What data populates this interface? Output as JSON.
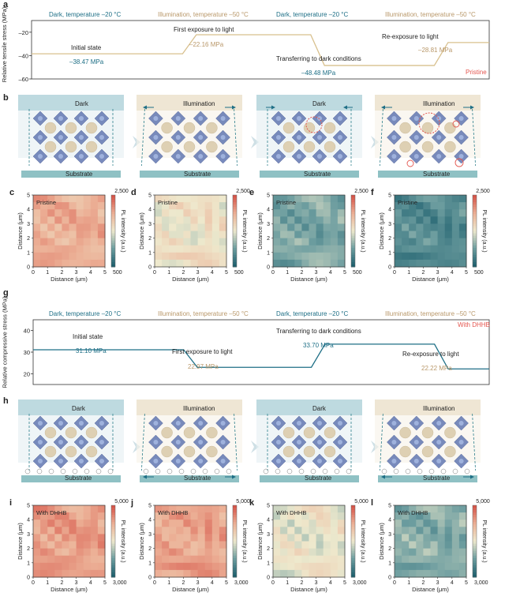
{
  "panels": {
    "a": "a",
    "b": "b",
    "c": "c",
    "d": "d",
    "e": "e",
    "f": "f",
    "g": "g",
    "h": "h",
    "i": "i",
    "j": "j",
    "k": "k",
    "l": "l"
  },
  "chart_data": [
    {
      "type": "line",
      "panel": "a",
      "ylabel": "Relative tensile stress (MPa)",
      "ylim": [
        -60,
        -10
      ],
      "yticks": [
        -20,
        -40,
        -60
      ],
      "x_stages": [
        0,
        1,
        2,
        3
      ],
      "values": [
        -38.47,
        -22.16,
        -48.48,
        -28.81
      ],
      "stage_headers": [
        "Dark, temperature –20 °C",
        "Illumination, temperature –50 °C",
        "Dark, temperature –20 °C",
        "Illumination, temperature –50 °C"
      ],
      "stage_labels": [
        "Initial state",
        "First exposure to light",
        "Transferring to dark conditions",
        "Re-exposure to light"
      ],
      "value_labels": [
        "–38.47 MPa",
        "–22.16 MPa",
        "–48.48 MPa",
        "–28.81 MPa"
      ],
      "tag": "Pristine",
      "line_color": "#d8c08e"
    },
    {
      "type": "line",
      "panel": "g",
      "ylabel": "Relative compressive stress (MPa)",
      "ylim": [
        15,
        45
      ],
      "yticks": [
        20,
        30,
        40
      ],
      "x_stages": [
        0,
        1,
        2,
        3
      ],
      "values": [
        31.1,
        22.97,
        33.7,
        22.22
      ],
      "stage_headers": [
        "Dark, temperature –20 °C",
        "Illumination, temperature –50 °C",
        "Dark, temperature –20 °C",
        "Illumination, temperature –50 °C"
      ],
      "stage_labels": [
        "Initial state",
        "First exposure to light",
        "Transferring to dark conditions",
        "Re-exposure to light"
      ],
      "value_labels": [
        "31.10 MPa",
        "22.97 MPa",
        "33.70 MPa",
        "22.22 MPa"
      ],
      "tag": "With DHHB",
      "line_color": "#1e6f86"
    },
    {
      "type": "heatmap",
      "panels": [
        "c",
        "d",
        "e",
        "f"
      ],
      "tag": "Pristine",
      "xlabel": "Distance (μm)",
      "ylabel": "Distance (μm)",
      "xlim": [
        0,
        5
      ],
      "ylim": [
        0,
        5
      ],
      "colorbar_label": "PL intensity (a.u.)",
      "colorbar_range": [
        500,
        2500
      ],
      "mean_intensity": [
        2000,
        1550,
        1050,
        850
      ]
    },
    {
      "type": "heatmap",
      "panels": [
        "i",
        "j",
        "k",
        "l"
      ],
      "tag": "With DHHB",
      "xlabel": "Distance (μm)",
      "ylabel": "Distance (μm)",
      "xlim": [
        0,
        5
      ],
      "ylim": [
        0,
        5
      ],
      "colorbar_label": "PL intensity (a.u.)",
      "colorbar_range": [
        3000,
        5000
      ],
      "mean_intensity": [
        4600,
        4550,
        4000,
        3600
      ]
    }
  ],
  "schematic_b": {
    "titles": [
      "Dark",
      "Illumination",
      "Dark",
      "Illumination"
    ],
    "substrate": "Substrate"
  },
  "schematic_h": {
    "titles": [
      "Dark",
      "Illumination",
      "Dark",
      "Illumination"
    ],
    "substrate": "Substrate"
  },
  "heatmap_labels": {
    "tick_min": "0",
    "tick_max_x": "5",
    "cbar_max_top": "2,500",
    "cbar_min_top": "500",
    "cbar_max_bottom": "5,000",
    "cbar_min_bottom": "3,000"
  },
  "colors": {
    "dark": "#1e6f86",
    "illumination": "#b9986a",
    "accent_red": "#e4564f",
    "substrate": "#8fc1c4",
    "dark_bg": "#b3d3da",
    "ill_bg": "#ece2cc"
  }
}
